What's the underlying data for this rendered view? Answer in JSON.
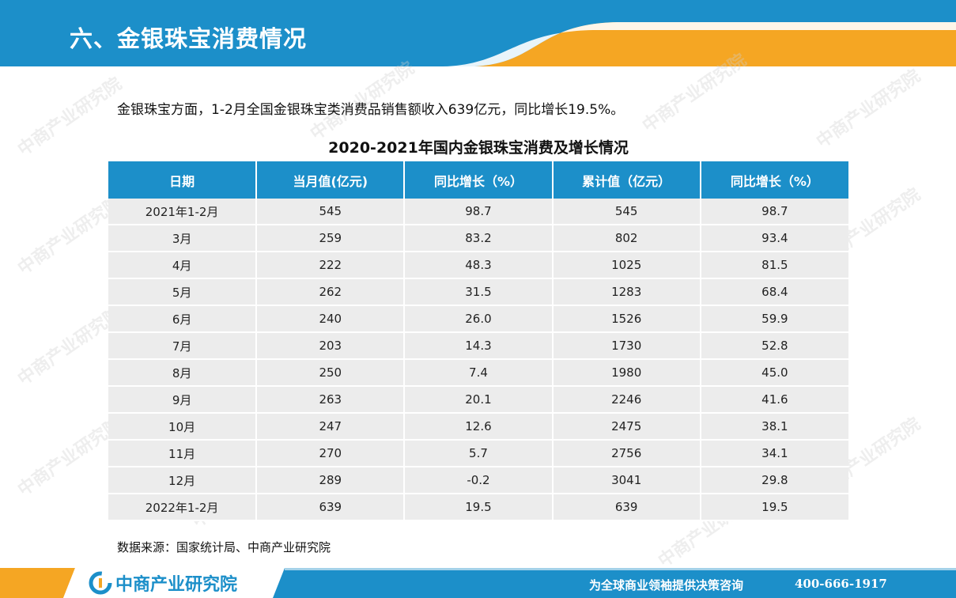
{
  "header": {
    "title": "六、金银珠宝消费情况"
  },
  "intro": "金银珠宝方面，1-2月全国金银珠宝类消费品销售额收入639亿元，同比增长19.5%。",
  "table": {
    "title": "2020-2021年国内金银珠宝消费及增长情况",
    "columns": [
      "日期",
      "当月值(亿元)",
      "同比增长（%）",
      "累计值（亿元）",
      "同比增长（%）"
    ],
    "rows": [
      [
        "2021年1-2月",
        "545",
        "98.7",
        "545",
        "98.7"
      ],
      [
        "3月",
        "259",
        "83.2",
        "802",
        "93.4"
      ],
      [
        "4月",
        "222",
        "48.3",
        "1025",
        "81.5"
      ],
      [
        "5月",
        "262",
        "31.5",
        "1283",
        "68.4"
      ],
      [
        "6月",
        "240",
        "26.0",
        "1526",
        "59.9"
      ],
      [
        "7月",
        "203",
        "14.3",
        "1730",
        "52.8"
      ],
      [
        "8月",
        "250",
        "7.4",
        "1980",
        "45.0"
      ],
      [
        "9月",
        "263",
        "20.1",
        "2246",
        "41.6"
      ],
      [
        "10月",
        "247",
        "12.6",
        "2475",
        "38.1"
      ],
      [
        "11月",
        "270",
        "5.7",
        "2756",
        "34.1"
      ],
      [
        "12月",
        "289",
        "-0.2",
        "3041",
        "29.8"
      ],
      [
        "2022年1-2月",
        "639",
        "19.5",
        "639",
        "19.5"
      ]
    ]
  },
  "source": "数据来源：国家统计局、中商产业研究院",
  "footer": {
    "logo_text": "中商产业研究院",
    "logo_icon": "company-logo-icon",
    "slogan": "为全球商业领袖提供决策咨询",
    "phone": "400-666-1917"
  },
  "watermark": {
    "text": "中商产业研究院"
  },
  "colors": {
    "primary_blue": "#1c8fc9",
    "accent_orange": "#f5a623",
    "row_gray": "#ececec"
  }
}
